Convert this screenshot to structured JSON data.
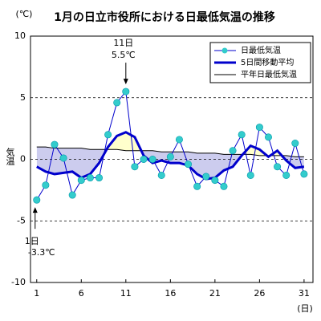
{
  "chart_data": {
    "type": "line",
    "title": "1月の日立市役所における日最低気温の推移",
    "y_unit": "(℃)",
    "y_label": "気温",
    "x_unit": "(日)",
    "x": [
      1,
      2,
      3,
      4,
      5,
      6,
      7,
      8,
      9,
      10,
      11,
      12,
      13,
      14,
      15,
      16,
      17,
      18,
      19,
      20,
      21,
      22,
      23,
      24,
      25,
      26,
      27,
      28,
      29,
      30,
      31
    ],
    "series": [
      {
        "name": "日最低気温",
        "color": "#33cccc",
        "marker": true,
        "values": [
          -3.3,
          -2.1,
          1.2,
          0.1,
          -2.9,
          -1.7,
          -1.5,
          -1.5,
          2.0,
          4.6,
          5.5,
          -0.6,
          0,
          0,
          -1.3,
          0.2,
          1.6,
          -0.4,
          -2.2,
          -1.4,
          -1.7,
          -2.2,
          0.7,
          2.0,
          -1.3,
          2.6,
          1.8,
          -0.6,
          -1.3,
          1.3,
          -1.2
        ]
      },
      {
        "name": "5日間移動平均",
        "color": "#0000cc",
        "marker": false,
        "values": [
          -0.6,
          -1.0,
          -1.2,
          -1.1,
          -1.0,
          -1.5,
          -1.2,
          -0.3,
          1.0,
          1.9,
          2.2,
          1.8,
          0.3,
          -0.3,
          -0.1,
          -0.3,
          -0.3,
          -0.5,
          -1.2,
          -1.6,
          -1.5,
          -0.9,
          -0.6,
          0.3,
          1.1,
          0.8,
          0.2,
          0.7,
          -0.1,
          -0.7,
          -0.6
        ]
      },
      {
        "name": "平年日最低気温",
        "color": "#000000",
        "marker": false,
        "values": [
          1.0,
          1.0,
          0.9,
          0.9,
          0.9,
          0.9,
          0.8,
          0.8,
          0.8,
          0.8,
          0.7,
          0.7,
          0.7,
          0.7,
          0.6,
          0.6,
          0.6,
          0.6,
          0.5,
          0.5,
          0.5,
          0.4,
          0.4,
          0.4,
          0.4,
          0.3,
          0.3,
          0.3,
          0.3,
          0.2,
          0.2
        ]
      }
    ],
    "annotations": [
      {
        "x": 11,
        "day": "11日",
        "value": "5.5℃",
        "direction": "down"
      },
      {
        "x": 1,
        "day": "1日",
        "value": "-3.3℃",
        "direction": "up"
      }
    ],
    "xlim": [
      0.3,
      32
    ],
    "xticks": [
      1,
      6,
      11,
      16,
      21,
      26,
      31
    ],
    "ylim": [
      -10,
      10
    ],
    "yticks": [
      -10,
      -5,
      0,
      5,
      10
    ],
    "grid": true,
    "legend": "upper right",
    "fill_above": "#ffffcc",
    "fill_below": "#ccccee"
  }
}
